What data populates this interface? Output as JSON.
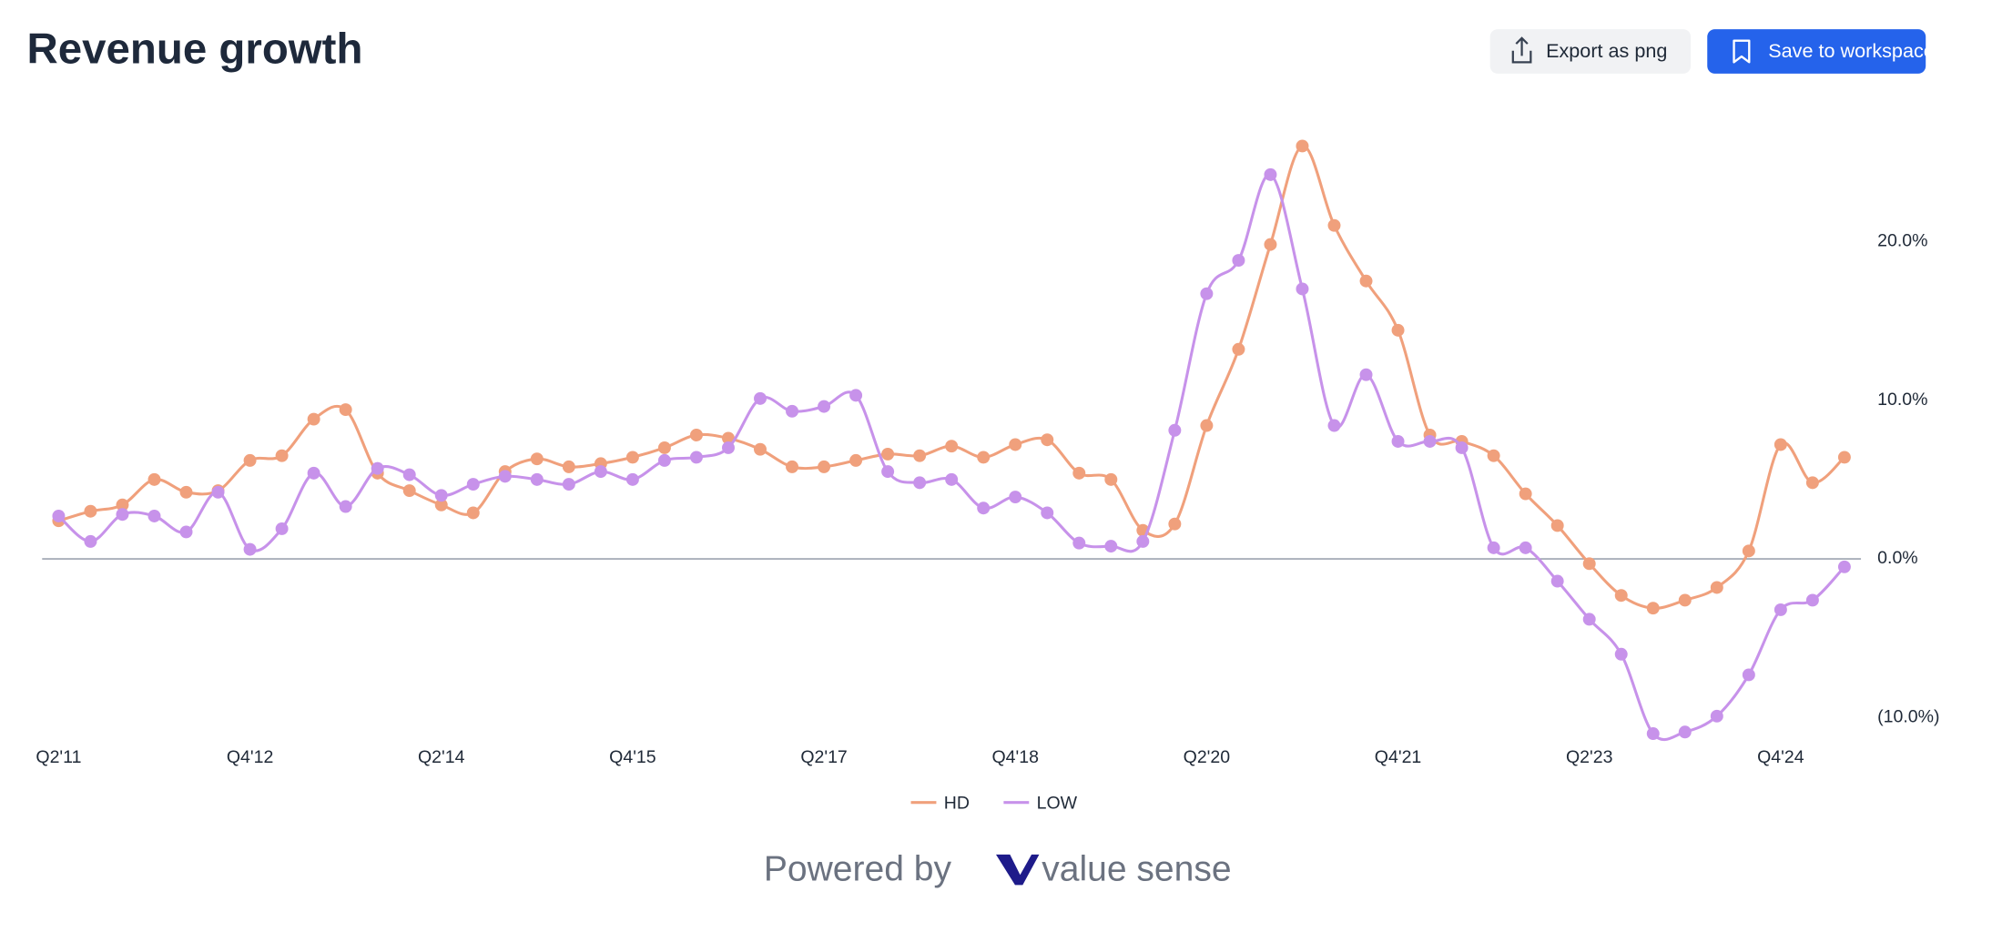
{
  "chart_data": {
    "type": "line",
    "title": "Revenue growth",
    "categories": [
      "Q2'11",
      null,
      null,
      null,
      null,
      null,
      "Q4'12",
      null,
      null,
      null,
      null,
      null,
      "Q2'14",
      null,
      null,
      null,
      null,
      null,
      "Q4'15",
      null,
      null,
      null,
      null,
      null,
      "Q2'17",
      null,
      null,
      null,
      null,
      null,
      "Q4'18",
      null,
      null,
      null,
      null,
      null,
      "Q2'20",
      null,
      null,
      null,
      null,
      null,
      "Q4'21",
      null,
      null,
      null,
      null,
      null,
      "Q2'23",
      null,
      null,
      null,
      null,
      null,
      "Q4'24",
      null,
      null
    ],
    "series": [
      {
        "name": "HD",
        "color": "#f0a07c",
        "values": [
          2.4,
          3.0,
          3.4,
          5.0,
          4.2,
          4.3,
          6.2,
          6.5,
          8.8,
          9.4,
          5.4,
          4.3,
          3.4,
          2.9,
          5.5,
          6.3,
          5.8,
          6.0,
          6.4,
          7.0,
          7.8,
          7.6,
          6.9,
          5.8,
          5.8,
          6.2,
          6.6,
          6.5,
          7.1,
          6.4,
          7.2,
          7.5,
          5.4,
          5.0,
          1.8,
          2.2,
          8.4,
          13.2,
          19.8,
          26.0,
          21.0,
          17.5,
          14.4,
          7.8,
          7.4,
          6.5,
          4.1,
          2.1,
          -0.3,
          -2.3,
          -3.1,
          -2.6,
          -1.8,
          0.5,
          7.2,
          4.8,
          6.4
        ]
      },
      {
        "name": "LOW",
        "color": "#c792ea",
        "values": [
          2.7,
          1.1,
          2.8,
          2.7,
          1.7,
          4.2,
          0.6,
          1.9,
          5.4,
          3.3,
          5.7,
          5.3,
          4.0,
          4.7,
          5.2,
          5.0,
          4.7,
          5.5,
          5.0,
          6.2,
          6.4,
          7.0,
          10.1,
          9.3,
          9.6,
          10.3,
          5.5,
          4.8,
          5.0,
          3.2,
          3.9,
          2.9,
          1.0,
          0.8,
          1.1,
          8.1,
          16.7,
          18.8,
          24.2,
          17.0,
          8.4,
          11.6,
          7.4,
          7.4,
          7.0,
          0.7,
          0.7,
          -1.4,
          -3.8,
          -6.0,
          -11.0,
          -10.9,
          -9.9,
          -7.3,
          -3.2,
          -2.6,
          -0.5
        ]
      }
    ],
    "ylim": [
      -11.5,
      27
    ],
    "yticks": [
      {
        "value": -10,
        "label": "(10.0%)"
      },
      {
        "value": 0,
        "label": "0.0%"
      },
      {
        "value": 10,
        "label": "10.0%"
      },
      {
        "value": 20,
        "label": "20.0%"
      }
    ],
    "legend": "bottom"
  },
  "buttons": {
    "export": "Export as png",
    "save": "Save to workspace"
  },
  "footer": {
    "powered_by": "Powered by",
    "brand": "value sense"
  }
}
